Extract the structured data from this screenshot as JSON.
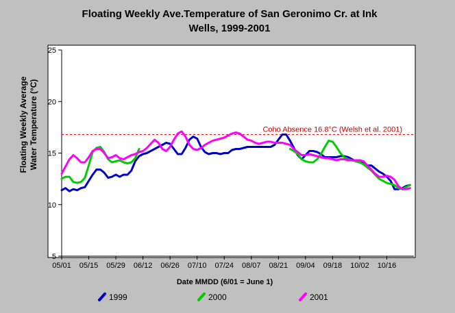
{
  "chart_data": {
    "type": "line",
    "title_line1": "Floating Weekly Ave.Temperature of San Geronimo Cr. at Ink",
    "title_line2": "Wells, 1999-2001",
    "ylabel_line1": "Floating Weekly Average",
    "ylabel_line2": "Water Temperature (°C)",
    "xlabel": "Date MMDD (6/01 = June 1)",
    "ylim": [
      5,
      25
    ],
    "yticks": [
      "5",
      "10",
      "15",
      "20",
      "25"
    ],
    "xlim": [
      0,
      182
    ],
    "xticks": [
      {
        "day": 0,
        "label": "05/01"
      },
      {
        "day": 14,
        "label": "05/15"
      },
      {
        "day": 28,
        "label": "05/29"
      },
      {
        "day": 42,
        "label": "06/12"
      },
      {
        "day": 56,
        "label": "06/26"
      },
      {
        "day": 70,
        "label": "07/10"
      },
      {
        "day": 84,
        "label": "07/24"
      },
      {
        "day": 98,
        "label": "08/07"
      },
      {
        "day": 112,
        "label": "08/21"
      },
      {
        "day": 126,
        "label": "09/04"
      },
      {
        "day": 140,
        "label": "09/18"
      },
      {
        "day": 154,
        "label": "10/02"
      },
      {
        "day": 168,
        "label": "10/16"
      }
    ],
    "grid": false,
    "legend_position": "bottom",
    "threshold": {
      "value": 16.8,
      "label": "Coho Absence 16.8°C (Welsh et al. 2001)",
      "color": "#cc0000"
    },
    "series": [
      {
        "name": "1999",
        "color": "#0000cc",
        "points": [
          [
            0,
            11.4
          ],
          [
            2,
            11.6
          ],
          [
            4,
            11.3
          ],
          [
            6,
            11.5
          ],
          [
            8,
            11.4
          ],
          [
            10,
            11.6
          ],
          [
            12,
            11.7
          ],
          [
            14,
            12.3
          ],
          [
            16,
            12.9
          ],
          [
            18,
            13.4
          ],
          [
            20,
            13.4
          ],
          [
            22,
            13.1
          ],
          [
            24,
            12.6
          ],
          [
            26,
            12.7
          ],
          [
            28,
            12.9
          ],
          [
            30,
            12.7
          ],
          [
            32,
            12.9
          ],
          [
            34,
            12.9
          ],
          [
            36,
            13.3
          ],
          [
            38,
            14.2
          ],
          [
            40,
            14.7
          ],
          [
            42,
            14.9
          ],
          [
            44,
            15.0
          ],
          [
            46,
            15.2
          ],
          [
            48,
            15.4
          ],
          [
            50,
            15.6
          ],
          [
            52,
            15.8
          ],
          [
            54,
            16.0
          ],
          [
            56,
            15.9
          ],
          [
            58,
            15.4
          ],
          [
            60,
            14.9
          ],
          [
            62,
            14.9
          ],
          [
            64,
            15.5
          ],
          [
            66,
            16.3
          ],
          [
            68,
            16.6
          ],
          [
            70,
            16.4
          ],
          [
            72,
            15.6
          ],
          [
            74,
            15.1
          ],
          [
            76,
            14.9
          ],
          [
            78,
            15.0
          ],
          [
            80,
            15.0
          ],
          [
            82,
            14.9
          ],
          [
            84,
            15.0
          ],
          [
            86,
            15.0
          ],
          [
            88,
            15.3
          ],
          [
            90,
            15.4
          ],
          [
            92,
            15.4
          ],
          [
            94,
            15.5
          ],
          [
            96,
            15.6
          ],
          [
            98,
            15.6
          ],
          [
            100,
            15.6
          ],
          [
            102,
            15.6
          ],
          [
            104,
            15.6
          ],
          [
            106,
            15.6
          ],
          [
            108,
            15.6
          ],
          [
            110,
            15.8
          ],
          [
            112,
            16.3
          ],
          [
            114,
            16.8
          ],
          [
            116,
            16.8
          ],
          [
            118,
            16.2
          ],
          [
            120,
            15.5
          ],
          [
            122,
            14.8
          ],
          [
            124,
            14.4
          ],
          [
            126,
            14.8
          ],
          [
            128,
            15.2
          ],
          [
            130,
            15.2
          ],
          [
            132,
            15.1
          ],
          [
            134,
            14.9
          ],
          [
            136,
            14.6
          ],
          [
            138,
            14.6
          ],
          [
            140,
            14.6
          ],
          [
            142,
            14.6
          ],
          [
            144,
            14.7
          ],
          [
            146,
            14.7
          ],
          [
            148,
            14.6
          ],
          [
            150,
            14.4
          ],
          [
            152,
            14.2
          ],
          [
            154,
            14.1
          ],
          [
            156,
            14.0
          ],
          [
            158,
            13.8
          ],
          [
            160,
            13.8
          ],
          [
            162,
            13.5
          ],
          [
            164,
            13.2
          ],
          [
            166,
            13.0
          ],
          [
            168,
            12.7
          ],
          [
            170,
            12.3
          ],
          [
            172,
            11.5
          ],
          [
            174,
            11.5
          ],
          [
            176,
            11.6
          ],
          [
            178,
            11.8
          ],
          [
            180,
            11.9
          ]
        ]
      },
      {
        "name": "2000",
        "color": "#00cc00",
        "points": [
          [
            0,
            12.5
          ],
          [
            2,
            12.7
          ],
          [
            4,
            12.7
          ],
          [
            6,
            12.2
          ],
          [
            8,
            12.1
          ],
          [
            10,
            12.2
          ],
          [
            12,
            12.6
          ],
          [
            14,
            13.8
          ],
          [
            16,
            15.1
          ],
          [
            18,
            15.5
          ],
          [
            20,
            15.6
          ],
          [
            22,
            15.1
          ],
          [
            24,
            14.4
          ],
          [
            26,
            14.1
          ],
          [
            28,
            14.2
          ],
          [
            30,
            14.3
          ],
          [
            32,
            14.1
          ],
          [
            34,
            14.0
          ],
          [
            36,
            14.1
          ],
          [
            38,
            14.5
          ],
          [
            40,
            15.4
          ],
          null,
          [
            118,
            15.4
          ],
          [
            120,
            15.2
          ],
          [
            122,
            14.9
          ],
          [
            124,
            14.4
          ],
          [
            126,
            14.2
          ],
          [
            128,
            14.1
          ],
          [
            130,
            14.1
          ],
          [
            132,
            14.4
          ],
          [
            134,
            14.9
          ],
          [
            136,
            15.6
          ],
          [
            138,
            16.2
          ],
          [
            140,
            16.1
          ],
          [
            142,
            15.6
          ],
          [
            144,
            15.0
          ],
          [
            146,
            14.6
          ],
          [
            148,
            14.4
          ],
          [
            150,
            14.3
          ],
          [
            152,
            14.2
          ],
          [
            154,
            14.1
          ],
          [
            156,
            13.9
          ],
          [
            158,
            13.6
          ],
          [
            160,
            13.3
          ],
          [
            162,
            12.9
          ],
          [
            164,
            12.5
          ],
          [
            166,
            12.3
          ],
          [
            168,
            12.1
          ],
          [
            170,
            12.0
          ],
          [
            172,
            11.9
          ],
          [
            174,
            11.6
          ],
          [
            176,
            11.5
          ],
          [
            178,
            11.7
          ],
          [
            180,
            11.9
          ]
        ]
      },
      {
        "name": "2001",
        "color": "#ff00ff",
        "points": [
          [
            0,
            13.0
          ],
          [
            2,
            13.7
          ],
          [
            4,
            14.4
          ],
          [
            6,
            14.8
          ],
          [
            8,
            14.5
          ],
          [
            10,
            14.1
          ],
          [
            12,
            14.1
          ],
          [
            14,
            14.6
          ],
          [
            16,
            15.2
          ],
          [
            18,
            15.4
          ],
          [
            20,
            15.4
          ],
          [
            22,
            15.0
          ],
          [
            24,
            14.5
          ],
          [
            26,
            14.6
          ],
          [
            28,
            14.8
          ],
          [
            30,
            14.5
          ],
          [
            32,
            14.4
          ],
          [
            34,
            14.6
          ],
          [
            36,
            14.8
          ],
          [
            38,
            14.9
          ],
          [
            40,
            15.1
          ],
          [
            42,
            15.2
          ],
          [
            44,
            15.5
          ],
          [
            46,
            15.9
          ],
          [
            48,
            16.3
          ],
          [
            50,
            16.0
          ],
          [
            52,
            15.4
          ],
          [
            54,
            15.2
          ],
          [
            56,
            15.6
          ],
          [
            58,
            16.3
          ],
          [
            60,
            16.9
          ],
          [
            62,
            17.1
          ],
          [
            64,
            16.6
          ],
          [
            66,
            15.8
          ],
          [
            68,
            15.4
          ],
          [
            70,
            15.3
          ],
          [
            72,
            15.5
          ],
          [
            74,
            15.8
          ],
          [
            76,
            16.0
          ],
          [
            78,
            16.2
          ],
          [
            80,
            16.3
          ],
          [
            82,
            16.4
          ],
          [
            84,
            16.5
          ],
          [
            86,
            16.7
          ],
          [
            88,
            16.9
          ],
          [
            90,
            17.0
          ],
          [
            92,
            16.9
          ],
          [
            94,
            16.6
          ],
          [
            96,
            16.3
          ],
          [
            98,
            16.2
          ],
          [
            100,
            16.0
          ],
          [
            102,
            15.9
          ],
          [
            104,
            16.0
          ],
          [
            106,
            16.1
          ],
          [
            108,
            16.1
          ],
          [
            110,
            16.0
          ],
          [
            112,
            16.0
          ],
          [
            114,
            16.0
          ],
          [
            116,
            15.9
          ],
          [
            118,
            15.8
          ],
          [
            120,
            15.4
          ],
          [
            122,
            15.1
          ],
          [
            124,
            14.8
          ],
          [
            126,
            14.8
          ],
          [
            128,
            14.9
          ],
          [
            130,
            14.8
          ],
          [
            132,
            14.7
          ],
          [
            134,
            14.6
          ],
          [
            136,
            14.5
          ],
          [
            138,
            14.5
          ],
          [
            140,
            14.4
          ],
          [
            142,
            14.3
          ],
          [
            144,
            14.4
          ],
          [
            146,
            14.4
          ],
          [
            148,
            14.3
          ],
          [
            150,
            14.3
          ],
          [
            152,
            14.3
          ],
          [
            154,
            14.3
          ],
          [
            156,
            14.2
          ],
          [
            158,
            13.8
          ],
          [
            160,
            13.4
          ],
          [
            162,
            13.0
          ],
          [
            164,
            12.7
          ],
          [
            166,
            12.7
          ],
          [
            168,
            12.8
          ],
          [
            170,
            12.7
          ],
          [
            172,
            12.4
          ],
          [
            174,
            11.8
          ],
          [
            176,
            11.5
          ],
          [
            178,
            11.5
          ],
          [
            180,
            11.6
          ]
        ]
      }
    ]
  }
}
